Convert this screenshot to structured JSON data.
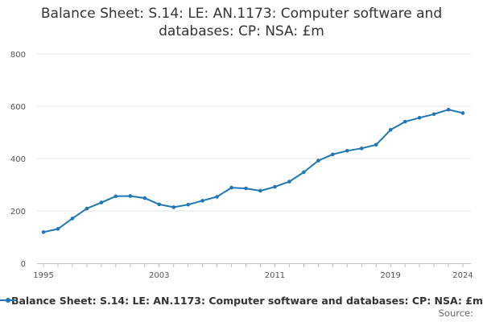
{
  "chart_data": {
    "type": "line",
    "title_line1": "Balance Sheet: S.14: LE: AN.1173: Computer software and",
    "title_line2": "databases: CP: NSA: £m",
    "xlabel": "",
    "ylabel": "",
    "xlim": [
      1995,
      2024
    ],
    "ylim": [
      0,
      800
    ],
    "yticks": [
      0,
      200,
      400,
      600,
      800
    ],
    "xticks": [
      1995,
      2003,
      2011,
      2019,
      2024
    ],
    "grid": "horizontal",
    "legend_position": "bottom",
    "series_color": "#1f77b4",
    "series": [
      {
        "name": "Balance Sheet: S.14: LE: AN.1173: Computer software and databases: CP: NSA: £m",
        "x": [
          1995,
          1996,
          1997,
          1998,
          1999,
          2000,
          2001,
          2002,
          2003,
          2004,
          2005,
          2006,
          2007,
          2008,
          2009,
          2010,
          2011,
          2012,
          2013,
          2014,
          2015,
          2016,
          2017,
          2018,
          2019,
          2020,
          2021,
          2022,
          2023,
          2024
        ],
        "values": [
          119,
          131,
          171,
          209,
          232,
          256,
          257,
          249,
          225,
          214,
          224,
          239,
          254,
          289,
          286,
          277,
          292,
          312,
          348,
          392,
          416,
          430,
          439,
          453,
          510,
          541,
          556,
          570,
          587,
          574
        ]
      }
    ]
  },
  "source_label": "Source:"
}
